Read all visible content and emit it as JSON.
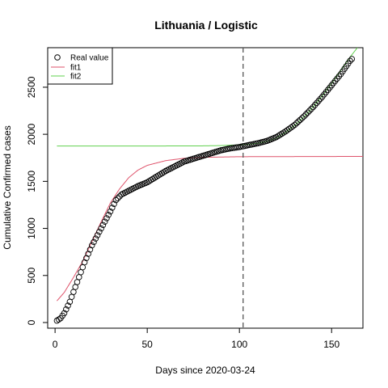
{
  "chart_data": {
    "type": "scatter",
    "title": "Lithuania / Logistic",
    "xlabel": "Days since 2020-03-24",
    "ylabel": "Cumulative Confirmed cases",
    "xlim": [
      -4,
      167
    ],
    "ylim": [
      -60,
      2920
    ],
    "xticks": [
      0,
      50,
      100,
      150
    ],
    "yticks": [
      0,
      500,
      1000,
      1500,
      2000,
      2500
    ],
    "vline": {
      "x": 102,
      "style": "dashed"
    },
    "legend": {
      "position": "top-left",
      "entries": [
        {
          "label": "Real value",
          "marker": "circle"
        },
        {
          "label": "fit1",
          "color": "#df536b"
        },
        {
          "label": "fit2",
          "color": "#61d04f"
        }
      ]
    },
    "colors": {
      "fit1": "#df536b",
      "fit2": "#61d04f",
      "points": "#000000"
    },
    "series": [
      {
        "name": "Real value",
        "type": "points",
        "keypoints": [
          [
            1,
            20
          ],
          [
            3,
            45
          ],
          [
            5,
            100
          ],
          [
            8,
            220
          ],
          [
            12,
            430
          ],
          [
            16,
            640
          ],
          [
            20,
            820
          ],
          [
            25,
            1000
          ],
          [
            30,
            1180
          ],
          [
            33,
            1300
          ],
          [
            36,
            1360
          ],
          [
            40,
            1400
          ],
          [
            45,
            1450
          ],
          [
            50,
            1490
          ],
          [
            55,
            1550
          ],
          [
            60,
            1610
          ],
          [
            65,
            1660
          ],
          [
            70,
            1710
          ],
          [
            75,
            1740
          ],
          [
            80,
            1770
          ],
          [
            85,
            1800
          ],
          [
            90,
            1830
          ],
          [
            95,
            1850
          ],
          [
            100,
            1865
          ],
          [
            105,
            1885
          ],
          [
            110,
            1905
          ],
          [
            115,
            1930
          ],
          [
            120,
            1970
          ],
          [
            125,
            2030
          ],
          [
            130,
            2100
          ],
          [
            135,
            2190
          ],
          [
            140,
            2290
          ],
          [
            145,
            2400
          ],
          [
            150,
            2520
          ],
          [
            155,
            2640
          ],
          [
            160,
            2780
          ],
          [
            161,
            2800
          ]
        ]
      },
      {
        "name": "fit1",
        "type": "line",
        "keypoints": [
          [
            1,
            230
          ],
          [
            5,
            320
          ],
          [
            10,
            480
          ],
          [
            15,
            650
          ],
          [
            20,
            860
          ],
          [
            25,
            1070
          ],
          [
            30,
            1270
          ],
          [
            35,
            1420
          ],
          [
            40,
            1540
          ],
          [
            45,
            1620
          ],
          [
            50,
            1670
          ],
          [
            60,
            1720
          ],
          [
            70,
            1745
          ],
          [
            80,
            1755
          ],
          [
            100,
            1762
          ],
          [
            167,
            1765
          ]
        ]
      },
      {
        "name": "fit2",
        "type": "line",
        "keypoints": [
          [
            1,
            1875
          ],
          [
            40,
            1875
          ],
          [
            60,
            1876
          ],
          [
            80,
            1877
          ],
          [
            90,
            1880
          ],
          [
            100,
            1888
          ],
          [
            105,
            1893
          ],
          [
            110,
            1905
          ],
          [
            115,
            1925
          ],
          [
            120,
            1960
          ],
          [
            125,
            2020
          ],
          [
            130,
            2095
          ],
          [
            135,
            2185
          ],
          [
            140,
            2290
          ],
          [
            145,
            2410
          ],
          [
            150,
            2540
          ],
          [
            155,
            2680
          ],
          [
            160,
            2820
          ],
          [
            164,
            2920
          ]
        ]
      }
    ]
  }
}
